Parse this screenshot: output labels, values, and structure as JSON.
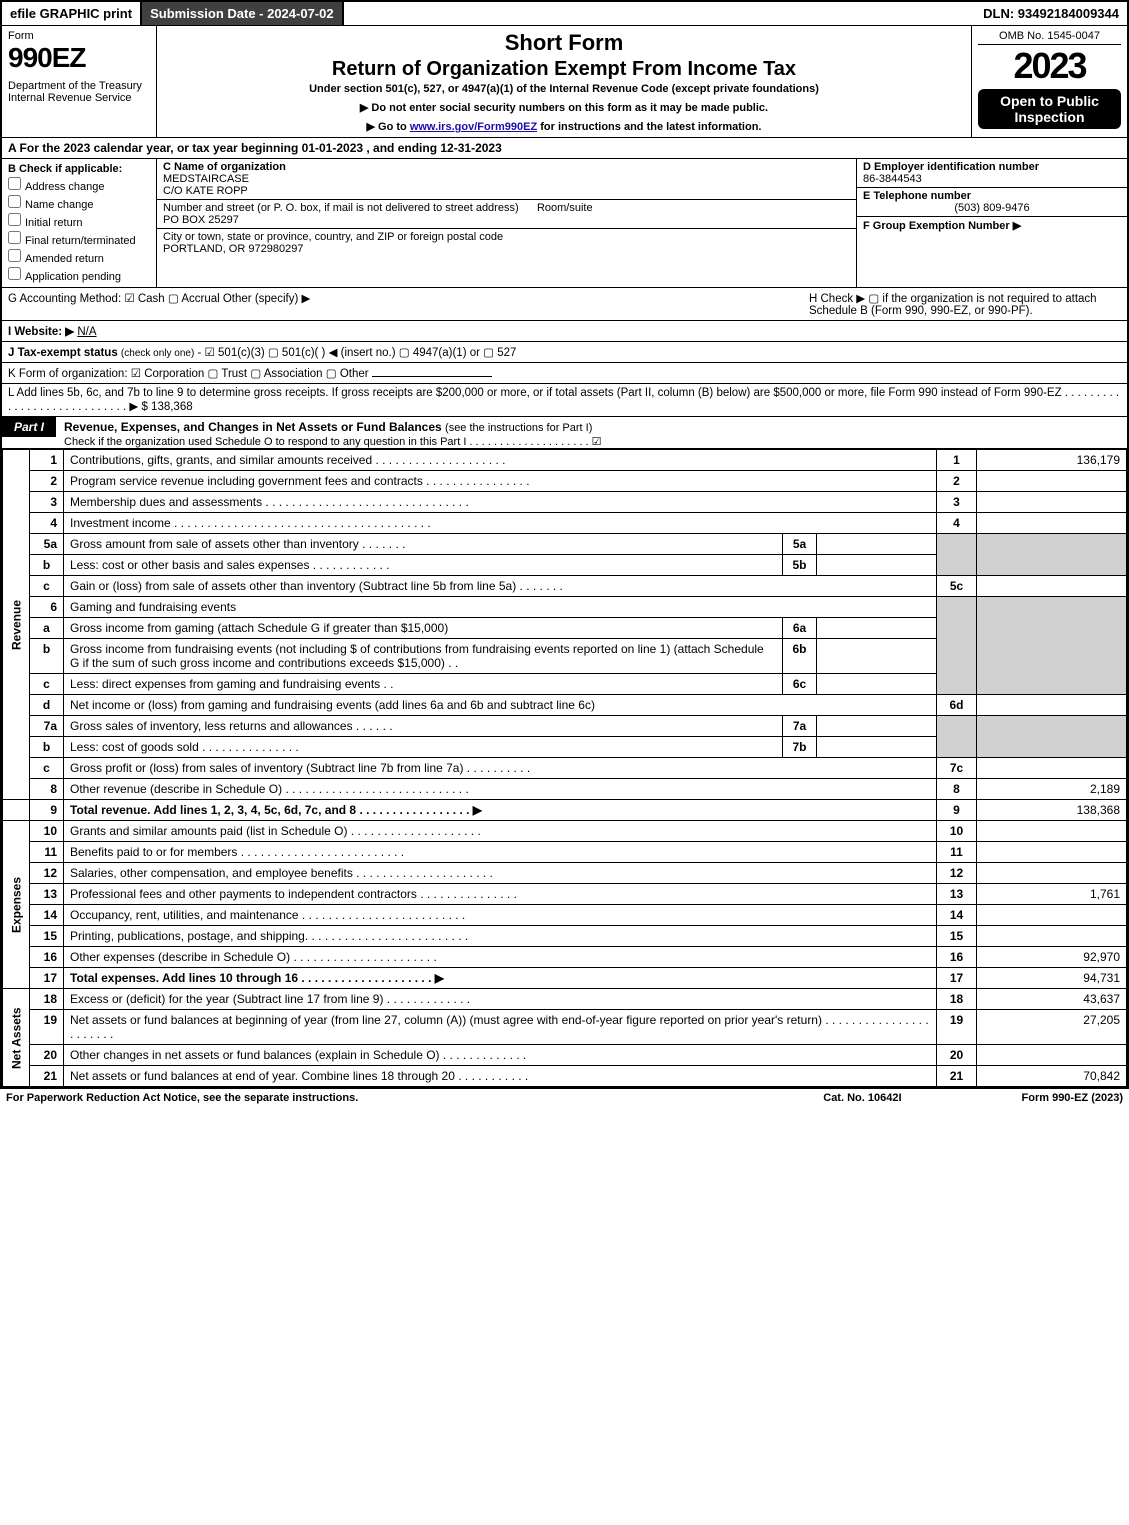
{
  "topbar": {
    "efile": "efile GRAPHIC print",
    "submission": "Submission Date - 2024-07-02",
    "dln": "DLN: 93492184009344"
  },
  "header": {
    "form_word": "Form",
    "form_num": "990EZ",
    "dept": "Department of the Treasury\nInternal Revenue Service",
    "title1": "Short Form",
    "title2": "Return of Organization Exempt From Income Tax",
    "sub": "Under section 501(c), 527, or 4947(a)(1) of the Internal Revenue Code (except private foundations)",
    "arrow1": "▶ Do not enter social security numbers on this form as it may be made public.",
    "arrow2_pre": "▶ Go to ",
    "arrow2_link": "www.irs.gov/Form990EZ",
    "arrow2_post": " for instructions and the latest information.",
    "omb": "OMB No. 1545-0047",
    "year": "2023",
    "open": "Open to Public Inspection"
  },
  "line_a": "A  For the 2023 calendar year, or tax year beginning 01-01-2023  , and ending 12-31-2023",
  "col_b": {
    "hdr": "B  Check if applicable:",
    "opts": [
      "Address change",
      "Name change",
      "Initial return",
      "Final return/terminated",
      "Amended return",
      "Application pending"
    ]
  },
  "col_c": {
    "name_lbl": "C Name of organization",
    "name": "MEDSTAIRCASE",
    "care": "C/O KATE ROPP",
    "street_lbl": "Number and street (or P. O. box, if mail is not delivered to street address)",
    "room_lbl": "Room/suite",
    "street": "PO BOX 25297",
    "city_lbl": "City or town, state or province, country, and ZIP or foreign postal code",
    "city": "PORTLAND, OR  972980297"
  },
  "col_d": {
    "ein_lbl": "D Employer identification number",
    "ein": "86-3844543",
    "tel_lbl": "E Telephone number",
    "tel": "(503) 809-9476",
    "grp_lbl": "F Group Exemption Number  ▶",
    "grp": ""
  },
  "row_gh": {
    "g": "G Accounting Method:   ☑ Cash   ▢ Accrual   Other (specify) ▶",
    "h": "H  Check ▶  ▢  if the organization is not required to attach Schedule B (Form 990, 990-EZ, or 990-PF)."
  },
  "row_i": "I Website: ▶",
  "row_i_val": "N/A",
  "row_j_pre": "J Tax-exempt status ",
  "row_j_sub": "(check only one)",
  "row_j_post": " - ☑ 501(c)(3)  ▢ 501(c)(  ) ◀ (insert no.)  ▢ 4947(a)(1) or  ▢ 527",
  "row_k": "K Form of organization:   ☑ Corporation   ▢ Trust   ▢ Association   ▢ Other",
  "row_l": "L Add lines 5b, 6c, and 7b to line 9 to determine gross receipts. If gross receipts are $200,000 or more, or if total assets (Part II, column (B) below) are $500,000 or more, file Form 990 instead of Form 990-EZ  .  .  .  .  .  .  .  .  .  .  .  .  .  .  .  .  .  .  .  .  .  .  .  .  .  .  .  .  ▶ $ 138,368",
  "part1": {
    "tab": "Part I",
    "title": "Revenue, Expenses, and Changes in Net Assets or Fund Balances ",
    "title_sub": "(see the instructions for Part I)",
    "sub": "Check if the organization used Schedule O to respond to any question in this Part I  .  .  .  .  .  .  .  .  .  .  .  .  .  .  .  .  .  .  .  .  ☑"
  },
  "vlabels": {
    "rev": "Revenue",
    "exp": "Expenses",
    "net": "Net Assets"
  },
  "lines": {
    "l1": {
      "no": "1",
      "desc": "Contributions, gifts, grants, and similar amounts received  .  .  .  .  .  .  .  .  .  .  .  .  .  .  .  .  .  .  .  .",
      "num": "1",
      "amt": "136,179"
    },
    "l2": {
      "no": "2",
      "desc": "Program service revenue including government fees and contracts  .  .  .  .  .  .  .  .  .  .  .  .  .  .  .  .",
      "num": "2",
      "amt": ""
    },
    "l3": {
      "no": "3",
      "desc": "Membership dues and assessments  .  .  .  .  .  .  .  .  .  .  .  .  .  .  .  .  .  .  .  .  .  .  .  .  .  .  .  .  .  .  .",
      "num": "3",
      "amt": ""
    },
    "l4": {
      "no": "4",
      "desc": "Investment income  .  .  .  .  .  .  .  .  .  .  .  .  .  .  .  .  .  .  .  .  .  .  .  .  .  .  .  .  .  .  .  .  .  .  .  .  .  .  .",
      "num": "4",
      "amt": ""
    },
    "l5a": {
      "no": "5a",
      "desc": "Gross amount from sale of assets other than inventory  .  .  .  .  .  .  .",
      "inlab": "5a",
      "inval": ""
    },
    "l5b": {
      "no": "b",
      "desc": "Less: cost or other basis and sales expenses  .  .  .  .  .  .  .  .  .  .  .  .",
      "inlab": "5b",
      "inval": ""
    },
    "l5c": {
      "no": "c",
      "desc": "Gain or (loss) from sale of assets other than inventory (Subtract line 5b from line 5a)  .  .  .  .  .  .  .",
      "num": "5c",
      "amt": ""
    },
    "l6": {
      "no": "6",
      "desc": "Gaming and fundraising events"
    },
    "l6a": {
      "no": "a",
      "desc": "Gross income from gaming (attach Schedule G if greater than $15,000)",
      "inlab": "6a",
      "inval": ""
    },
    "l6b": {
      "no": "b",
      "desc": "Gross income from fundraising events (not including $                    of contributions from fundraising events reported on line 1) (attach Schedule G if the sum of such gross income and contributions exceeds $15,000)      .    .",
      "inlab": "6b",
      "inval": ""
    },
    "l6c": {
      "no": "c",
      "desc": "Less: direct expenses from gaming and fundraising events      .    .",
      "inlab": "6c",
      "inval": ""
    },
    "l6d": {
      "no": "d",
      "desc": "Net income or (loss) from gaming and fundraising events (add lines 6a and 6b and subtract line 6c)",
      "num": "6d",
      "amt": ""
    },
    "l7a": {
      "no": "7a",
      "desc": "Gross sales of inventory, less returns and allowances  .  .  .  .  .  .",
      "inlab": "7a",
      "inval": ""
    },
    "l7b": {
      "no": "b",
      "desc": "Less: cost of goods sold          .    .    .    .    .    .    .    .    .    .    .    .    .    .    .",
      "inlab": "7b",
      "inval": ""
    },
    "l7c": {
      "no": "c",
      "desc": "Gross profit or (loss) from sales of inventory (Subtract line 7b from line 7a)  .  .  .  .  .  .  .  .  .  .",
      "num": "7c",
      "amt": ""
    },
    "l8": {
      "no": "8",
      "desc": "Other revenue (describe in Schedule O)  .  .  .  .  .  .  .  .  .  .  .  .  .  .  .  .  .  .  .  .  .  .  .  .  .  .  .  .",
      "num": "8",
      "amt": "2,189"
    },
    "l9": {
      "no": "9",
      "desc": "Total revenue. Add lines 1, 2, 3, 4, 5c, 6d, 7c, and 8    .    .    .    .    .    .    .    .    .    .    .    .    .    .    .    .    .  ▶",
      "num": "9",
      "amt": "138,368",
      "bold": true
    },
    "l10": {
      "no": "10",
      "desc": "Grants and similar amounts paid (list in Schedule O)  .  .  .  .  .  .  .  .  .  .  .  .  .  .  .  .  .  .  .  .",
      "num": "10",
      "amt": ""
    },
    "l11": {
      "no": "11",
      "desc": "Benefits paid to or for members      .    .    .    .    .    .    .    .    .    .    .    .    .    .    .    .    .    .    .    .    .    .    .    .    .",
      "num": "11",
      "amt": ""
    },
    "l12": {
      "no": "12",
      "desc": "Salaries, other compensation, and employee benefits  .  .  .  .  .  .  .  .  .  .  .  .  .  .  .  .  .  .  .  .  .",
      "num": "12",
      "amt": ""
    },
    "l13": {
      "no": "13",
      "desc": "Professional fees and other payments to independent contractors  .  .  .  .  .  .  .  .  .  .  .  .  .  .  .",
      "num": "13",
      "amt": "1,761"
    },
    "l14": {
      "no": "14",
      "desc": "Occupancy, rent, utilities, and maintenance  .  .  .  .  .  .  .  .  .  .  .  .  .  .  .  .  .  .  .  .  .  .  .  .  .",
      "num": "14",
      "amt": ""
    },
    "l15": {
      "no": "15",
      "desc": "Printing, publications, postage, and shipping.  .  .  .  .  .  .  .  .  .  .  .  .  .  .  .  .  .  .  .  .  .  .  .  .",
      "num": "15",
      "amt": ""
    },
    "l16": {
      "no": "16",
      "desc": "Other expenses (describe in Schedule O)      .    .    .    .    .    .    .    .    .    .    .    .    .    .    .    .    .    .    .    .    .    .",
      "num": "16",
      "amt": "92,970"
    },
    "l17": {
      "no": "17",
      "desc": "Total expenses. Add lines 10 through 16       .    .    .    .    .    .    .    .    .    .    .    .    .    .    .    .    .    .    .    .  ▶",
      "num": "17",
      "amt": "94,731",
      "bold": true
    },
    "l18": {
      "no": "18",
      "desc": "Excess or (deficit) for the year (Subtract line 17 from line 9)          .    .    .    .    .    .    .    .    .    .    .    .    .",
      "num": "18",
      "amt": "43,637"
    },
    "l19": {
      "no": "19",
      "desc": "Net assets or fund balances at beginning of year (from line 27, column (A)) (must agree with end-of-year figure reported on prior year's return)  .  .  .  .  .  .  .  .  .  .  .  .  .  .  .  .  .  .  .  .  .  .  .",
      "num": "19",
      "amt": "27,205"
    },
    "l20": {
      "no": "20",
      "desc": "Other changes in net assets or fund balances (explain in Schedule O)  .  .  .  .  .  .  .  .  .  .  .  .  .",
      "num": "20",
      "amt": ""
    },
    "l21": {
      "no": "21",
      "desc": "Net assets or fund balances at end of year. Combine lines 18 through 20  .  .  .  .  .  .  .  .  .  .  .",
      "num": "21",
      "amt": "70,842"
    }
  },
  "footer": {
    "left": "For Paperwork Reduction Act Notice, see the separate instructions.",
    "mid": "Cat. No. 10642I",
    "right": "Form 990-EZ (2023)"
  }
}
